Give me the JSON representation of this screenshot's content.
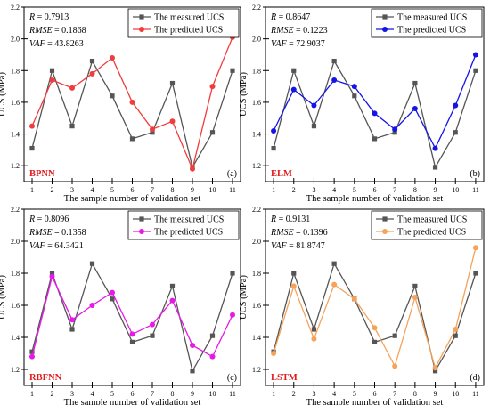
{
  "chart_data": [
    {
      "type": "line",
      "panel_label": "(a)",
      "model_label": "BPNN",
      "model_color": "#e31a1c",
      "stats": [
        "R = 0.7913",
        "RMSE = 0.1868",
        "VAF = 43.8263"
      ],
      "xlabel": "The sample number of validation set",
      "ylabel": "UCS (MPa)",
      "x": [
        1,
        2,
        3,
        4,
        5,
        6,
        7,
        8,
        9,
        10,
        11
      ],
      "xlim": [
        0.6,
        11.4
      ],
      "ylim": [
        1.1,
        2.2
      ],
      "yticks": [
        "1.2",
        "1.4",
        "1.6",
        "1.8",
        "2.0",
        "2.2"
      ],
      "series": [
        {
          "name": "The measured UCS",
          "color": "#555555",
          "marker": "square",
          "values": [
            1.31,
            1.8,
            1.45,
            1.86,
            1.64,
            1.37,
            1.41,
            1.72,
            1.19,
            1.41,
            1.8
          ]
        },
        {
          "name": "The predicted UCS",
          "color": "#f03c3c",
          "marker": "circle",
          "values": [
            1.45,
            1.74,
            1.69,
            1.78,
            1.88,
            1.6,
            1.43,
            1.48,
            1.18,
            1.7,
            2.01
          ]
        }
      ]
    },
    {
      "type": "line",
      "panel_label": "(b)",
      "model_label": "ELM",
      "model_color": "#e31a1c",
      "stats": [
        "R = 0.8647",
        "RMSE = 0.1223",
        "VAF = 72.9037"
      ],
      "xlabel": "The sample number of validation set",
      "ylabel": "UCS (MPa)",
      "x": [
        1,
        2,
        3,
        4,
        5,
        6,
        7,
        8,
        9,
        10,
        11
      ],
      "xlim": [
        0.6,
        11.4
      ],
      "ylim": [
        1.1,
        2.2
      ],
      "yticks": [
        "1.2",
        "1.4",
        "1.6",
        "1.8",
        "2.0",
        "2.2"
      ],
      "series": [
        {
          "name": "The measured UCS",
          "color": "#555555",
          "marker": "square",
          "values": [
            1.31,
            1.8,
            1.45,
            1.86,
            1.64,
            1.37,
            1.41,
            1.72,
            1.19,
            1.41,
            1.8
          ]
        },
        {
          "name": "The predicted UCS",
          "color": "#1414e6",
          "marker": "circle",
          "values": [
            1.42,
            1.68,
            1.58,
            1.74,
            1.7,
            1.53,
            1.43,
            1.56,
            1.31,
            1.58,
            1.9
          ]
        }
      ]
    },
    {
      "type": "line",
      "panel_label": "(c)",
      "model_label": "RBFNN",
      "model_color": "#e31a1c",
      "stats": [
        "R = 0.8096",
        "RMSE = 0.1358",
        "VAF = 64.3421"
      ],
      "xlabel": "The sample number of validation set",
      "ylabel": "UCS (MPa)",
      "x": [
        1,
        2,
        3,
        4,
        5,
        6,
        7,
        8,
        9,
        10,
        11
      ],
      "xlim": [
        0.6,
        11.4
      ],
      "ylim": [
        1.1,
        2.2
      ],
      "yticks": [
        "1.2",
        "1.4",
        "1.6",
        "1.8",
        "2.0",
        "2.2"
      ],
      "series": [
        {
          "name": "The measured UCS",
          "color": "#555555",
          "marker": "square",
          "values": [
            1.31,
            1.8,
            1.45,
            1.86,
            1.64,
            1.37,
            1.41,
            1.72,
            1.19,
            1.41,
            1.8
          ]
        },
        {
          "name": "The predicted UCS",
          "color": "#e619e6",
          "marker": "circle",
          "values": [
            1.28,
            1.78,
            1.51,
            1.6,
            1.68,
            1.42,
            1.48,
            1.63,
            1.35,
            1.28,
            1.54
          ]
        }
      ]
    },
    {
      "type": "line",
      "panel_label": "(d)",
      "model_label": "LSTM",
      "model_color": "#e31a1c",
      "stats": [
        "R = 0.9131",
        "RMSE = 0.1396",
        "VAF = 81.8747"
      ],
      "xlabel": "The sample number of validation set",
      "ylabel": "UCS (MPa)",
      "x": [
        1,
        2,
        3,
        4,
        5,
        6,
        7,
        8,
        9,
        10,
        11
      ],
      "xlim": [
        0.6,
        11.4
      ],
      "ylim": [
        1.1,
        2.2
      ],
      "yticks": [
        "1.2",
        "1.4",
        "1.6",
        "1.8",
        "2.0",
        "2.2"
      ],
      "series": [
        {
          "name": "The measured UCS",
          "color": "#555555",
          "marker": "square",
          "values": [
            1.31,
            1.8,
            1.45,
            1.86,
            1.64,
            1.37,
            1.41,
            1.72,
            1.19,
            1.41,
            1.8
          ]
        },
        {
          "name": "The predicted UCS",
          "color": "#f5a35a",
          "marker": "circle",
          "values": [
            1.3,
            1.72,
            1.39,
            1.73,
            1.64,
            1.46,
            1.22,
            1.65,
            1.21,
            1.45,
            1.96
          ]
        }
      ]
    }
  ]
}
